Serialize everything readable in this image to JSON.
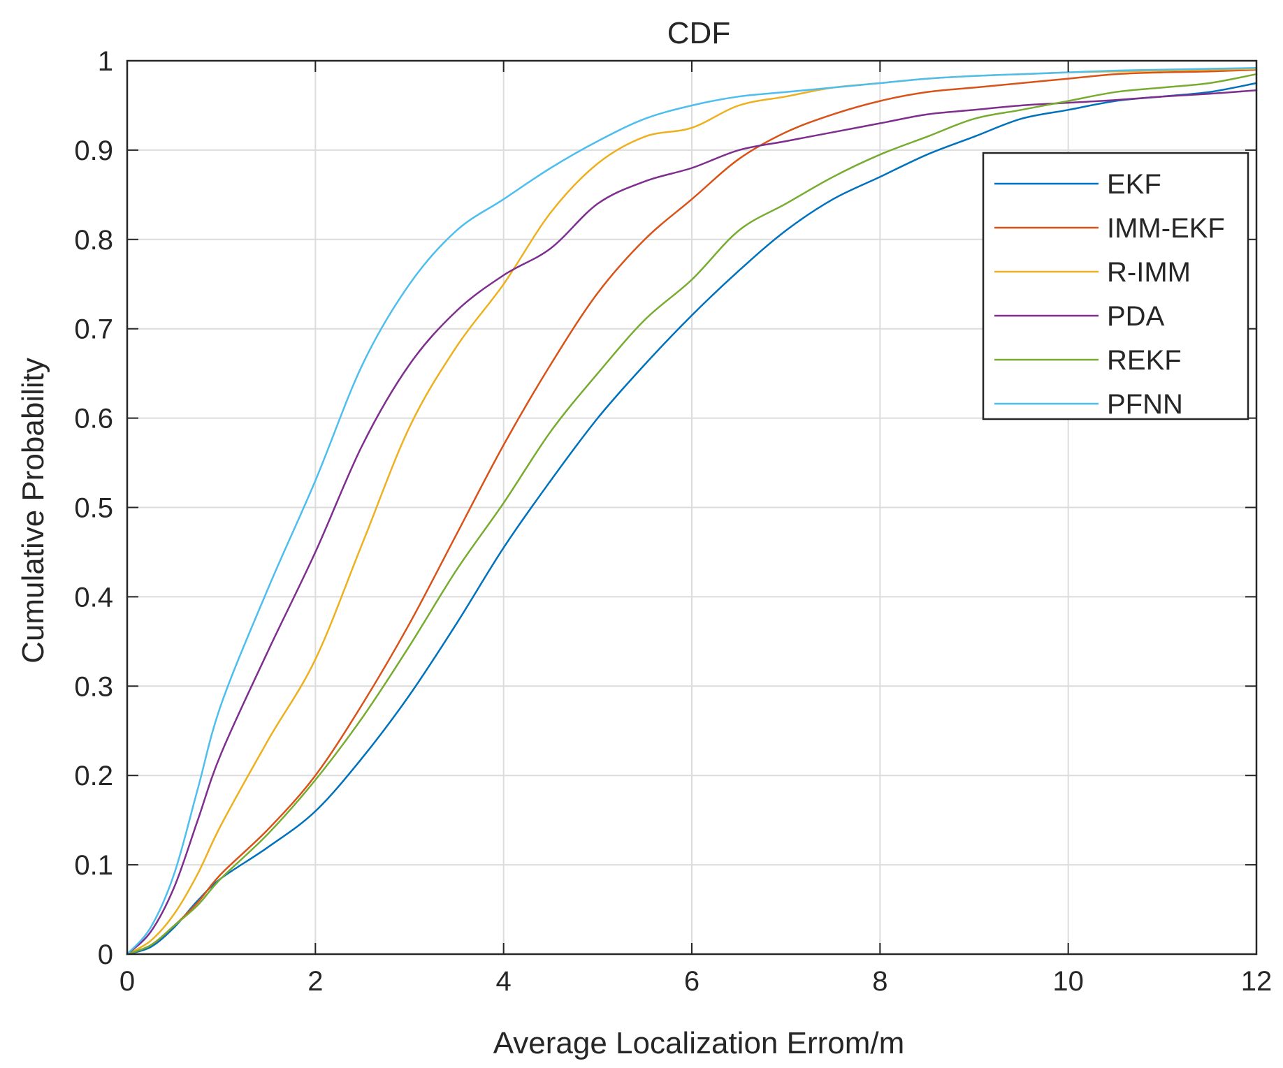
{
  "chart_data": {
    "type": "line",
    "title": "CDF",
    "xlabel": "Average Localization Errom/m",
    "ylabel": "Cumulative Probability",
    "xlim": [
      0,
      12
    ],
    "ylim": [
      0,
      1
    ],
    "grid": true,
    "legend_position": "top-right",
    "x_ticks": [
      0,
      2,
      4,
      6,
      8,
      10,
      12
    ],
    "x_tick_labels": [
      "0",
      "2",
      "4",
      "6",
      "8",
      "10",
      "12"
    ],
    "y_ticks": [
      0,
      0.1,
      0.2,
      0.3,
      0.4,
      0.5,
      0.6,
      0.7,
      0.8,
      0.9,
      1
    ],
    "y_tick_labels": [
      "0",
      "0.1",
      "0.2",
      "0.3",
      "0.4",
      "0.5",
      "0.6",
      "0.7",
      "0.8",
      "0.9",
      "1"
    ],
    "x": [
      0,
      0.25,
      0.5,
      0.75,
      1,
      1.5,
      2,
      2.5,
      3,
      3.5,
      4,
      4.5,
      5,
      5.5,
      6,
      6.5,
      7,
      7.5,
      8,
      8.5,
      9,
      9.5,
      10,
      10.5,
      11,
      11.5,
      12
    ],
    "series": [
      {
        "name": "EKF",
        "color": "#0072BD",
        "values": [
          0,
          0.008,
          0.03,
          0.06,
          0.085,
          0.12,
          0.16,
          0.22,
          0.29,
          0.37,
          0.455,
          0.53,
          0.6,
          0.66,
          0.715,
          0.765,
          0.81,
          0.845,
          0.87,
          0.895,
          0.915,
          0.935,
          0.945,
          0.955,
          0.96,
          0.965,
          0.975
        ]
      },
      {
        "name": "IMM-EKF",
        "color": "#D95319",
        "values": [
          0,
          0.01,
          0.032,
          0.058,
          0.09,
          0.14,
          0.2,
          0.28,
          0.37,
          0.47,
          0.57,
          0.66,
          0.74,
          0.8,
          0.845,
          0.89,
          0.92,
          0.94,
          0.955,
          0.965,
          0.97,
          0.975,
          0.98,
          0.985,
          0.987,
          0.988,
          0.99
        ]
      },
      {
        "name": "R-IMM",
        "color": "#EDB120",
        "values": [
          0,
          0.015,
          0.045,
          0.09,
          0.145,
          0.24,
          0.33,
          0.46,
          0.59,
          0.68,
          0.75,
          0.83,
          0.885,
          0.915,
          0.925,
          0.95,
          0.96,
          0.97,
          0.975,
          0.98,
          0.983,
          0.985,
          0.987,
          0.988,
          0.989,
          0.99,
          0.991
        ]
      },
      {
        "name": "PDA",
        "color": "#7E2F8E",
        "values": [
          0,
          0.025,
          0.075,
          0.15,
          0.225,
          0.34,
          0.45,
          0.57,
          0.66,
          0.72,
          0.76,
          0.79,
          0.84,
          0.865,
          0.88,
          0.9,
          0.91,
          0.92,
          0.93,
          0.94,
          0.945,
          0.95,
          0.953,
          0.956,
          0.96,
          0.963,
          0.967
        ]
      },
      {
        "name": "REKF",
        "color": "#77AC30",
        "values": [
          0,
          0.01,
          0.032,
          0.055,
          0.085,
          0.135,
          0.195,
          0.265,
          0.345,
          0.43,
          0.505,
          0.585,
          0.65,
          0.71,
          0.755,
          0.81,
          0.84,
          0.87,
          0.895,
          0.915,
          0.935,
          0.945,
          0.955,
          0.965,
          0.97,
          0.975,
          0.985
        ]
      },
      {
        "name": "PFNN",
        "color": "#4DBEEE",
        "values": [
          0,
          0.03,
          0.09,
          0.185,
          0.28,
          0.41,
          0.53,
          0.66,
          0.75,
          0.81,
          0.845,
          0.88,
          0.91,
          0.935,
          0.95,
          0.96,
          0.965,
          0.97,
          0.975,
          0.98,
          0.983,
          0.985,
          0.987,
          0.989,
          0.99,
          0.991,
          0.992
        ]
      }
    ]
  }
}
